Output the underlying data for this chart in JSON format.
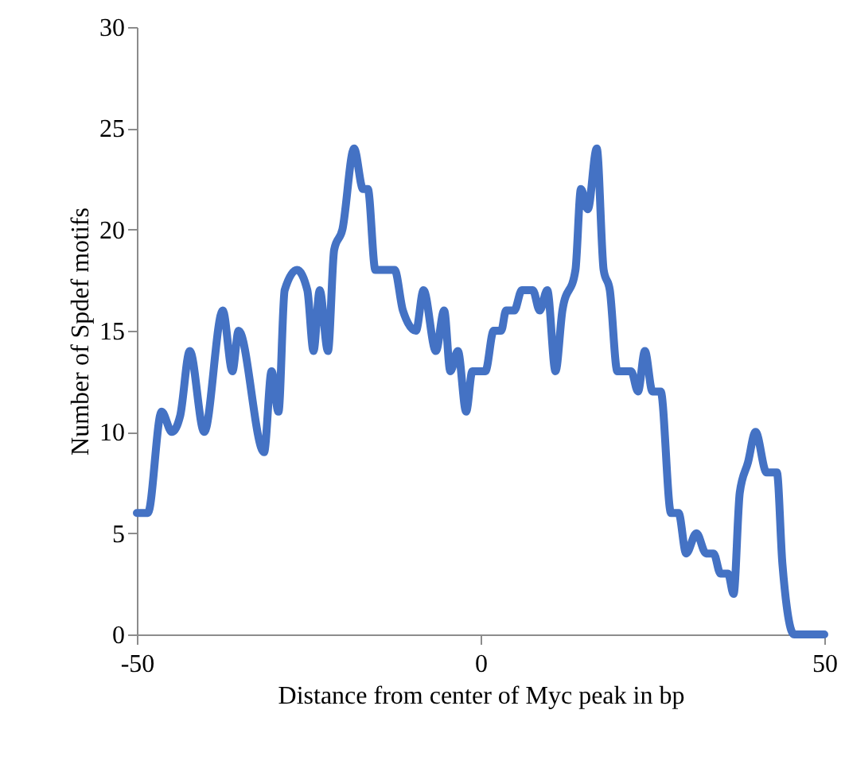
{
  "chart_data": {
    "type": "line",
    "xlabel": "Distance from center of Myc peak in bp",
    "ylabel": "Number of Spdef motifs",
    "x": [
      -50,
      -48.4,
      -46.4,
      -44.9,
      -43.7,
      -42.3,
      -40.2,
      -37.5,
      -36.1,
      -35.2,
      -31.5,
      -30.4,
      -29.4,
      -28.5,
      -26.7,
      -25.2,
      -24.3,
      -23.4,
      -22.2,
      -21.3,
      -20.1,
      -18.4,
      -17.1,
      -16.4,
      -15.3,
      -12.5,
      -11.3,
      -9.4,
      -8.3,
      -6.5,
      -5.3,
      -4.4,
      -3.3,
      -2.1,
      -1.2,
      0.7,
      1.9,
      3.0,
      3.7,
      4.9,
      6.0,
      7.6,
      8.6,
      9.7,
      10.9,
      11.9,
      13.8,
      14.6,
      15.6,
      16.9,
      17.9,
      18.8,
      19.9,
      21.9,
      22.9,
      23.9,
      25.0,
      26.2,
      27.7,
      28.8,
      29.9,
      31.4,
      32.8,
      33.9,
      34.9,
      36.0,
      36.8,
      37.7,
      38.9,
      40.0,
      41.6,
      43.1,
      43.9,
      45.6,
      50
    ],
    "series": [
      {
        "color": "#4472c4",
        "values": [
          6,
          6,
          11,
          10,
          10.8,
          14,
          10,
          16,
          13,
          15,
          9,
          13,
          11,
          17,
          18,
          17,
          14,
          17,
          14,
          19,
          20,
          24,
          22,
          22,
          18,
          18,
          16,
          15,
          17,
          14,
          16,
          13,
          14,
          11,
          13,
          13,
          15,
          15,
          16,
          16,
          17,
          17,
          16,
          17,
          13,
          16,
          18,
          22,
          21,
          24,
          18,
          17,
          13,
          13,
          12,
          14,
          12,
          12,
          6,
          6,
          4,
          5,
          4,
          4,
          3,
          3,
          2,
          7,
          8.5,
          10,
          8,
          8,
          3.5,
          0,
          0
        ]
      }
    ],
    "xlim": [
      -50,
      50
    ],
    "xticks": [
      -50,
      0,
      50
    ],
    "ylim": [
      0,
      30
    ],
    "yticks": [
      0,
      5,
      10,
      15,
      20,
      25,
      30
    ],
    "grid": false,
    "marker": "none",
    "line_style": "solid"
  }
}
